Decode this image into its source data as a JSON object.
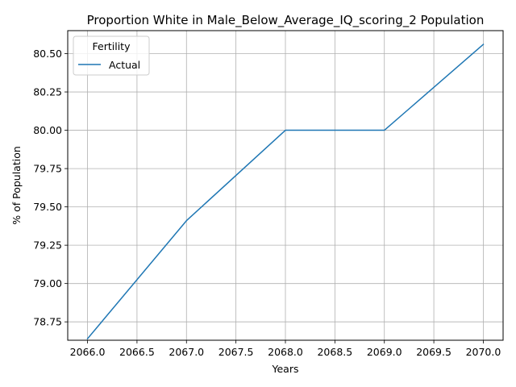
{
  "chart_data": {
    "type": "line",
    "title": "Proportion White in Male_Below_Average_IQ_scoring_2 Population",
    "xlabel": "Years",
    "ylabel": "% of Population",
    "xlim": [
      2065.8,
      2070.2
    ],
    "ylim": [
      78.63,
      80.65
    ],
    "x_ticks": [
      2066.0,
      2066.5,
      2067.0,
      2067.5,
      2068.0,
      2068.5,
      2069.0,
      2069.5,
      2070.0
    ],
    "x_tick_labels": [
      "2066.0",
      "2066.5",
      "2067.0",
      "2067.5",
      "2068.0",
      "2068.5",
      "2069.0",
      "2069.5",
      "2070.0"
    ],
    "y_ticks": [
      78.75,
      79.0,
      79.25,
      79.5,
      79.75,
      80.0,
      80.25,
      80.5
    ],
    "y_tick_labels": [
      "78.75",
      "79.00",
      "79.25",
      "79.50",
      "79.75",
      "80.00",
      "80.25",
      "80.50"
    ],
    "grid": true,
    "legend": {
      "title": "Fertility",
      "position": "top-left"
    },
    "series": [
      {
        "name": "Actual",
        "color": "#1f77b4",
        "x": [
          2066,
          2067,
          2068,
          2069,
          2070
        ],
        "y": [
          78.64,
          79.41,
          80.0,
          80.0,
          80.56
        ]
      }
    ]
  }
}
